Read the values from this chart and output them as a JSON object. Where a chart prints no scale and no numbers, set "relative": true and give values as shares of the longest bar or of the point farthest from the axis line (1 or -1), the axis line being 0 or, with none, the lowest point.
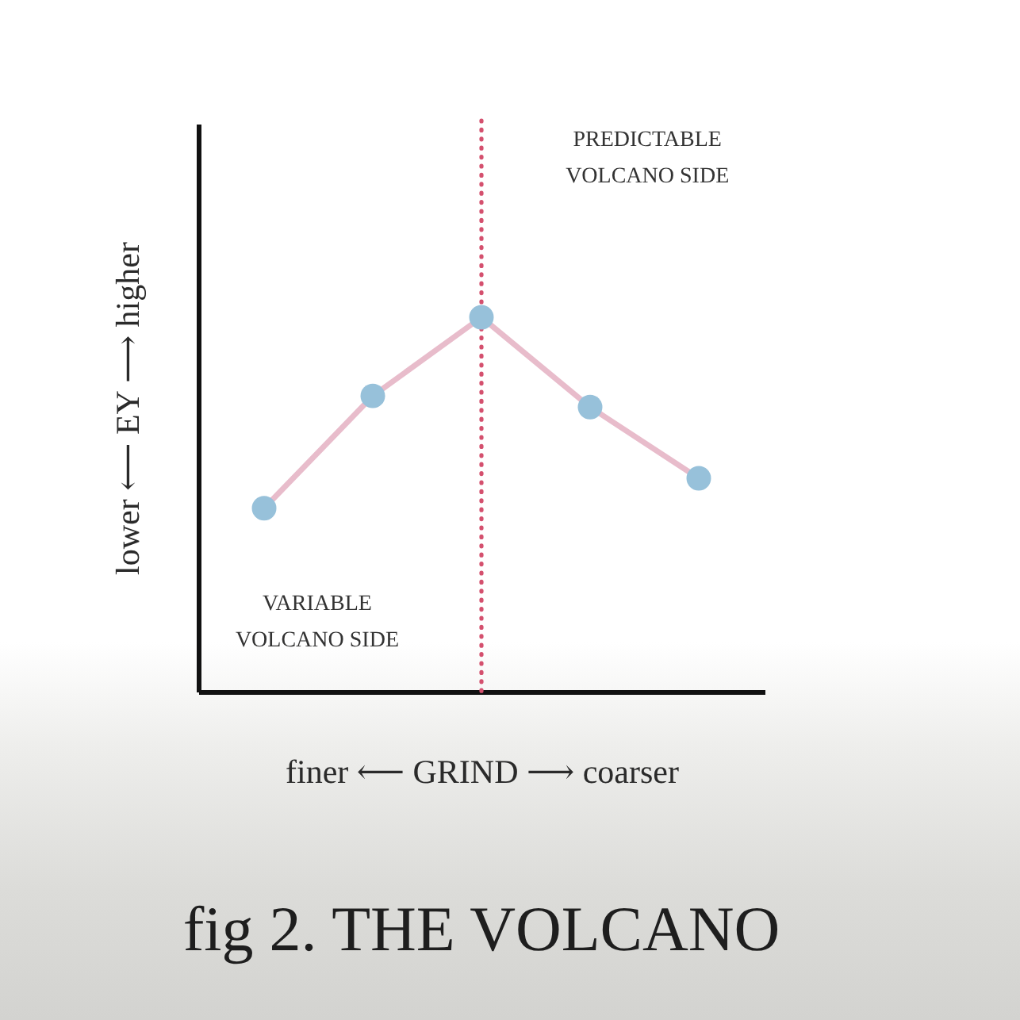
{
  "chart_data": {
    "type": "line",
    "title": "fig 2. THE VOLCANO",
    "xlabel": "finer ⟵ GRIND ⟶ coarser",
    "ylabel": "lower ⟵ EY ⟶ higher",
    "categories": [
      null,
      null,
      null,
      null,
      null
    ],
    "relative": true,
    "marker": "circle",
    "line_style": "solid",
    "series": [
      {
        "color": "#e8bccb",
        "colors": [
          "#97c1da",
          "#97c1da",
          "#97c1da",
          "#97c1da",
          "#97c1da"
        ],
        "values": [
          0.49,
          0.79,
          1,
          0.76,
          0.57
        ]
      }
    ],
    "annotations": [
      "PREDICTABLE VOLCANO SIDE",
      "VARIABLE VOLCANO SIDE"
    ]
  }
}
